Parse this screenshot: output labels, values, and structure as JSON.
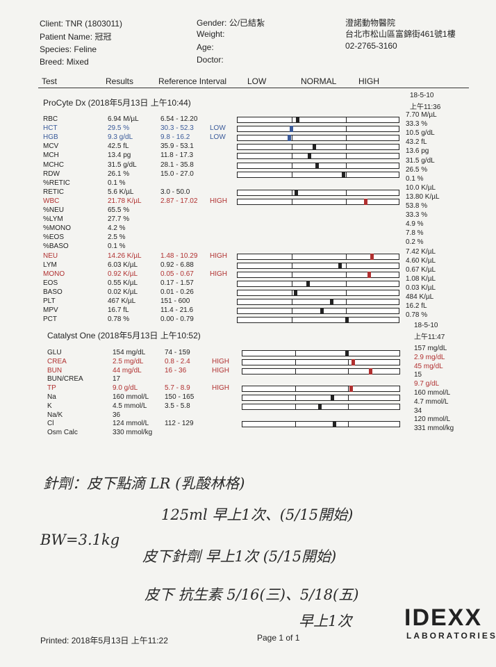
{
  "header": {
    "client": "Client: TNR (1803011)",
    "patient": "Patient Name: 冠冠",
    "species": "Species: Feline",
    "breed": "Breed: Mixed",
    "gender": "Gender: 公/已結紮",
    "weight": "Weight:",
    "age": "Age:",
    "doctor": "Doctor:",
    "clinic": "澄諾動物醫院",
    "address": "台北市松山區富錦街461號1樓",
    "phone": "02-2765-3160"
  },
  "columns": [
    "Test",
    "Results",
    "Reference Interval",
    "LOW",
    "NORMAL",
    "HIGH"
  ],
  "sections": [
    {
      "title": "ProCyte Dx (2018年5月13日 上午10:44)",
      "prev_date": "18-5-10",
      "prev_time": "上午11:36",
      "rows": [
        {
          "test": "RBC",
          "result": "6.94 M/µL",
          "ref": "6.54 - 12.20",
          "prev": "7.70 M/µL"
        },
        {
          "test": "HCT",
          "result": "29.5 %",
          "ref": "30.3 - 52.3",
          "flag": "LOW",
          "prev": "33.3 %"
        },
        {
          "test": "HGB",
          "result": "9.3 g/dL",
          "ref": "9.8 - 16.2",
          "flag": "LOW",
          "prev": "10.5 g/dL"
        },
        {
          "test": "MCV",
          "result": "42.5 fL",
          "ref": "35.9 - 53.1",
          "prev": "43.2 fL"
        },
        {
          "test": "MCH",
          "result": "13.4 pg",
          "ref": "11.8 - 17.3",
          "prev": "13.6 pg"
        },
        {
          "test": "MCHC",
          "result": "31.5 g/dL",
          "ref": "28.1 - 35.8",
          "prev": "31.5 g/dL"
        },
        {
          "test": "RDW",
          "result": "26.1 %",
          "ref": "15.0 - 27.0",
          "prev": "26.5 %"
        },
        {
          "test": "%RETIC",
          "result": "0.1 %",
          "prev": "0.1 %"
        },
        {
          "test": "RETIC",
          "result": "5.6 K/µL",
          "ref": "3.0 - 50.0",
          "prev": "10.0 K/µL"
        },
        {
          "test": "WBC",
          "result": "21.78 K/µL",
          "ref": "2.87 - 17.02",
          "flag": "HIGH",
          "prev": "13.80 K/µL"
        },
        {
          "test": "%NEU",
          "result": "65.5 %",
          "prev": "53.8 %"
        },
        {
          "test": "%LYM",
          "result": "27.7 %",
          "prev": "33.3 %"
        },
        {
          "test": "%MONO",
          "result": "4.2 %",
          "prev": "4.9 %"
        },
        {
          "test": "%EOS",
          "result": "2.5 %",
          "prev": "7.8 %"
        },
        {
          "test": "%BASO",
          "result": "0.1 %",
          "prev": "0.2 %"
        },
        {
          "test": "NEU",
          "result": "14.26 K/µL",
          "ref": "1.48 - 10.29",
          "flag": "HIGH",
          "prev": "7.42 K/µL"
        },
        {
          "test": "LYM",
          "result": "6.03 K/µL",
          "ref": "0.92 - 6.88",
          "prev": "4.60 K/µL"
        },
        {
          "test": "MONO",
          "result": "0.92 K/µL",
          "ref": "0.05 - 0.67",
          "flag": "HIGH",
          "prev": "0.67 K/µL"
        },
        {
          "test": "EOS",
          "result": "0.55 K/µL",
          "ref": "0.17 - 1.57",
          "prev": "1.08 K/µL"
        },
        {
          "test": "BASO",
          "result": "0.02 K/µL",
          "ref": "0.01 - 0.26",
          "prev": "0.03 K/µL"
        },
        {
          "test": "PLT",
          "result": "467 K/µL",
          "ref": "151 - 600",
          "prev": "484 K/µL"
        },
        {
          "test": "MPV",
          "result": "16.7 fL",
          "ref": "11.4 - 21.6",
          "prev": "16.2 fL"
        },
        {
          "test": "PCT",
          "result": "0.78 %",
          "ref": "0.00 - 0.79",
          "prev": "0.78 %"
        }
      ]
    },
    {
      "title": "Catalyst One (2018年5月13日 上午10:52)",
      "prev_date": "18-5-10",
      "prev_time": "上午11:47",
      "rows": [
        {
          "test": "GLU",
          "result": "154 mg/dL",
          "ref": "74 - 159",
          "prev": "157 mg/dL"
        },
        {
          "test": "CREA",
          "result": "2.5 mg/dL",
          "ref": "0.8 - 2.4",
          "flag": "HIGH",
          "prev": "2.9 mg/dL",
          "prev_color": "#b03030"
        },
        {
          "test": "BUN",
          "result": "44 mg/dL",
          "ref": "16 - 36",
          "flag": "HIGH",
          "prev": "45 mg/dL",
          "prev_color": "#b03030"
        },
        {
          "test": "BUN/CREA",
          "result": "17",
          "prev": "15"
        },
        {
          "test": "TP",
          "result": "9.0 g/dL",
          "ref": "5.7 - 8.9",
          "flag": "HIGH",
          "prev": "9.7 g/dL",
          "prev_color": "#b03030"
        },
        {
          "test": "Na",
          "result": "160 mmol/L",
          "ref": "150 - 165",
          "prev": "160 mmol/L"
        },
        {
          "test": "K",
          "result": "4.5 mmol/L",
          "ref": "3.5 - 5.8",
          "prev": "4.7 mmol/L"
        },
        {
          "test": "Na/K",
          "result": "36",
          "prev": "34"
        },
        {
          "test": "Cl",
          "result": "124 mmol/L",
          "ref": "112 - 129",
          "prev": "120 mmol/L"
        },
        {
          "test": "Osm Calc",
          "result": "330 mmol/kg",
          "prev": "331 mmol/kg"
        }
      ]
    }
  ],
  "notes": [
    "針劑：皮下點滴 LR (乳酸林格)",
    "125ml 早上1次、(5/15開始)",
    "BW=3.1kg",
    "皮下針劑 早上1次 (5/15開始)",
    "皮下 抗生素 5/16(三)、5/18(五)",
    "早上1次"
  ],
  "footer": {
    "printed": "Printed: 2018年5月13日 上午11:22",
    "page": "Page 1 of 1",
    "logo": "IDEXX",
    "logo_sub": "LABORATORIES"
  }
}
